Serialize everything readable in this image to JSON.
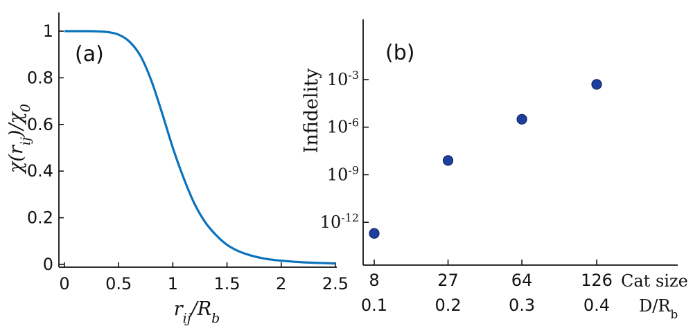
{
  "chart_data": [
    {
      "panel": "(a)",
      "type": "line",
      "xlabel_main": "r",
      "xlabel_sub": "ij",
      "xlabel_rest": "/R",
      "xlabel_sub2": "b",
      "ylabel_main": "χ(r",
      "ylabel_sub": "ij",
      "ylabel_rest": ")/χ",
      "ylabel_sub2": "0",
      "xlim": [
        0,
        2.5
      ],
      "ylim": [
        0,
        1
      ],
      "x_ticks": [
        {
          "v": 0,
          "label": "0"
        },
        {
          "v": 0.5,
          "label": "0.5"
        },
        {
          "v": 1,
          "label": "1"
        },
        {
          "v": 1.5,
          "label": "1.5"
        },
        {
          "v": 2,
          "label": "2"
        },
        {
          "v": 2.5,
          "label": "2.5"
        }
      ],
      "y_ticks": [
        {
          "v": 0,
          "label": "0"
        },
        {
          "v": 0.2,
          "label": "0.2"
        },
        {
          "v": 0.4,
          "label": "0.4"
        },
        {
          "v": 0.6,
          "label": "0.6"
        },
        {
          "v": 0.8,
          "label": "0.8"
        },
        {
          "v": 1,
          "label": "1"
        }
      ],
      "series": [
        {
          "color": "#0b72bd",
          "x": [
            0,
            0.2,
            0.3,
            0.4,
            0.5,
            0.6,
            0.7,
            0.8,
            0.9,
            1.0,
            1.1,
            1.2,
            1.3,
            1.4,
            1.5,
            1.6,
            1.7,
            1.8,
            1.9,
            2.0,
            2.2,
            2.5
          ],
          "y": [
            1.0,
            1.0,
            0.999,
            0.996,
            0.985,
            0.955,
            0.895,
            0.79,
            0.65,
            0.5,
            0.37,
            0.26,
            0.18,
            0.125,
            0.084,
            0.058,
            0.041,
            0.029,
            0.021,
            0.016,
            0.009,
            0.004
          ]
        }
      ]
    },
    {
      "panel": "(b)",
      "type": "scatter",
      "ylabel": "Infidelity",
      "y_scale": "log",
      "ylim_exp": [
        -14.7,
        0.8
      ],
      "y_ticks": [
        {
          "exp": -12,
          "base": "10",
          "sup": "-12"
        },
        {
          "exp": -9,
          "base": "10",
          "sup": "-9"
        },
        {
          "exp": -6,
          "base": "10",
          "sup": "-6"
        },
        {
          "exp": -3,
          "base": "10",
          "sup": "-3"
        }
      ],
      "x_row1_title": "Cat size",
      "x_row2_title_main": "D/R",
      "x_row2_title_sub": "b",
      "x_categories": [
        {
          "cat": "8",
          "d": "0.1"
        },
        {
          "cat": "27",
          "d": "0.2"
        },
        {
          "cat": "64",
          "d": "0.3"
        },
        {
          "cat": "126",
          "d": "0.4"
        }
      ],
      "points": [
        {
          "x": 8,
          "exp": -12.7
        },
        {
          "x": 27,
          "exp": -8.1
        },
        {
          "x": 64,
          "exp": -5.5
        },
        {
          "x": 126,
          "exp": -3.3
        }
      ],
      "dot_color": "#1e3f9e"
    }
  ]
}
